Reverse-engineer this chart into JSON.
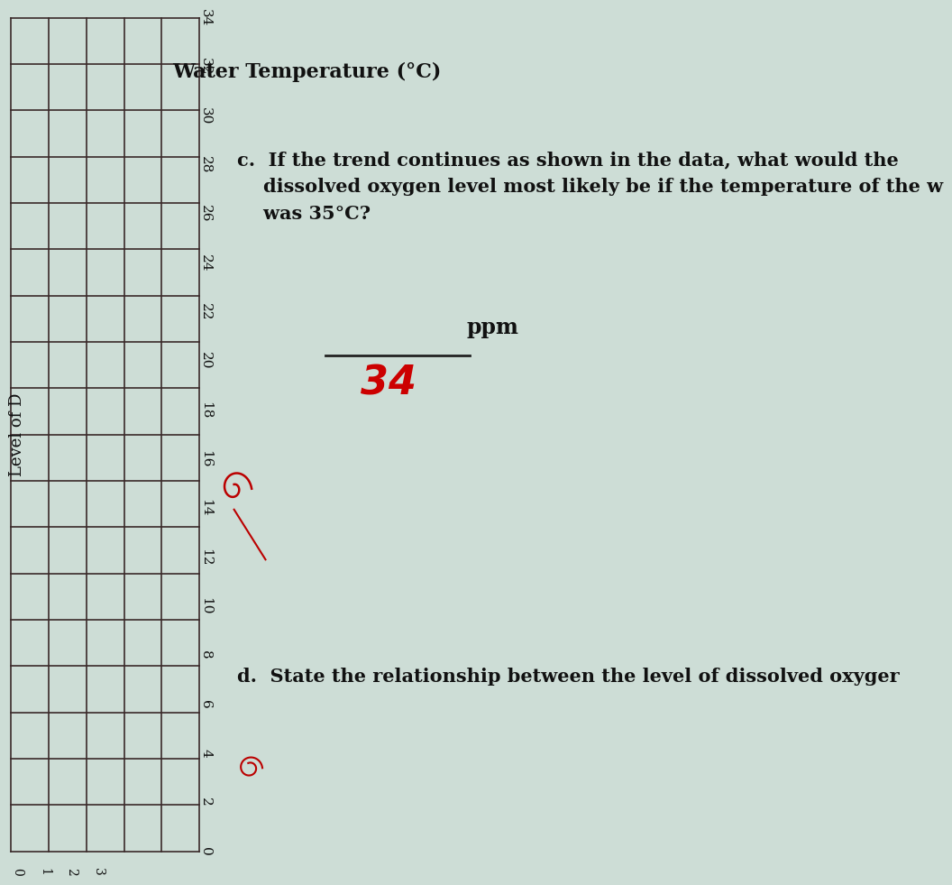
{
  "bg_color": "#cdddd6",
  "grid_color": "#3a2a2a",
  "grid_rows": 18,
  "grid_cols": 5,
  "ylabel_text": "Level of D",
  "xlabel_text": "Water Temperature (°C)",
  "x_tick_labels": [
    "0",
    "2",
    "4",
    "6",
    "8",
    "10",
    "12",
    "14",
    "16",
    "18",
    "20",
    "22",
    "24",
    "26",
    "28",
    "30",
    "32",
    "34"
  ],
  "y_tick_labels": [
    "0",
    "1",
    "2",
    "3"
  ],
  "question_c_text": "c.  If the trend continues as shown in the data, what would the\n    dissolved oxygen level most likely be if the temperature of the w\n    was 35°C?",
  "answer_34": "34",
  "answer_ppm_label": "ppm",
  "question_d_text": "d.  State the relationship between the level of dissolved oxyger",
  "answer_34_color": "#cc0000",
  "line_color": "#222222",
  "text_color": "#111111",
  "font_size_question": 15,
  "font_size_answer": 32,
  "font_size_xlabel": 16,
  "font_size_ylabel": 13,
  "font_size_ticks": 11
}
